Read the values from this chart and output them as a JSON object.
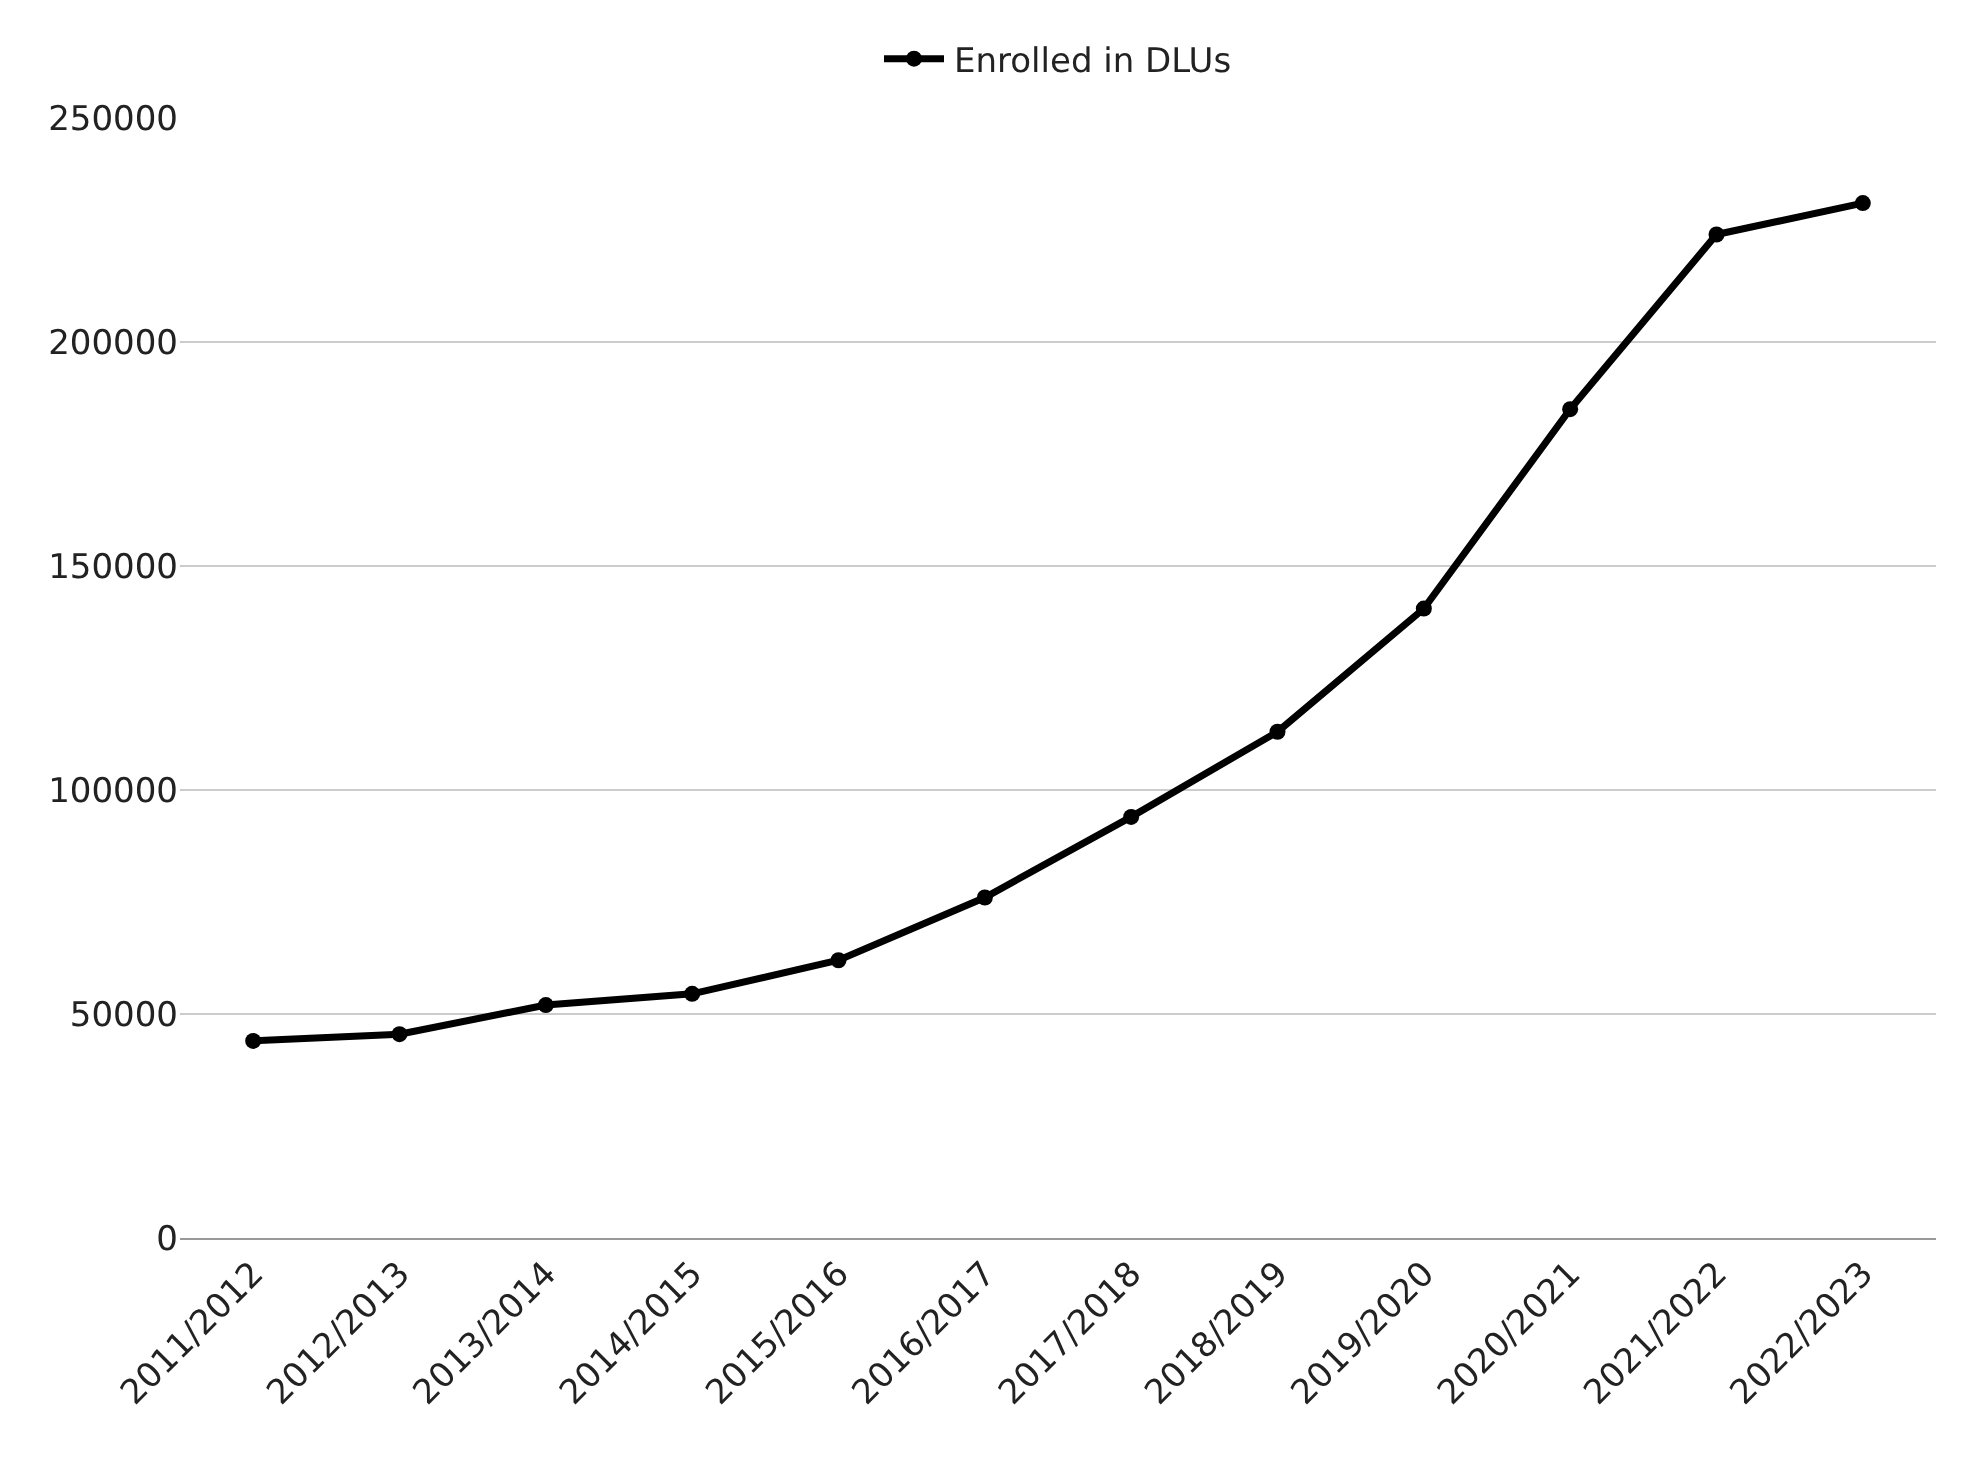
{
  "chart_data": {
    "type": "line",
    "categories": [
      "2011/2012",
      "2012/2013",
      "2013/2014",
      "2014/2015",
      "2015/2016",
      "2016/2017",
      "2017/2018",
      "2018/2019",
      "2019/2020",
      "2020/2021",
      "2021/2022",
      "2022/2023"
    ],
    "series": [
      {
        "name": "Enrolled in DLUs",
        "color": "#000000",
        "values": [
          44000,
          45500,
          52000,
          54500,
          62000,
          76000,
          94000,
          113000,
          140500,
          185000,
          224000,
          231000
        ]
      }
    ],
    "ylim": [
      0,
      250000
    ],
    "yticks": [
      0,
      50000,
      100000,
      150000,
      200000,
      250000
    ],
    "grid": "y",
    "legend": "top",
    "marker": "circle",
    "line_style": "solid"
  }
}
